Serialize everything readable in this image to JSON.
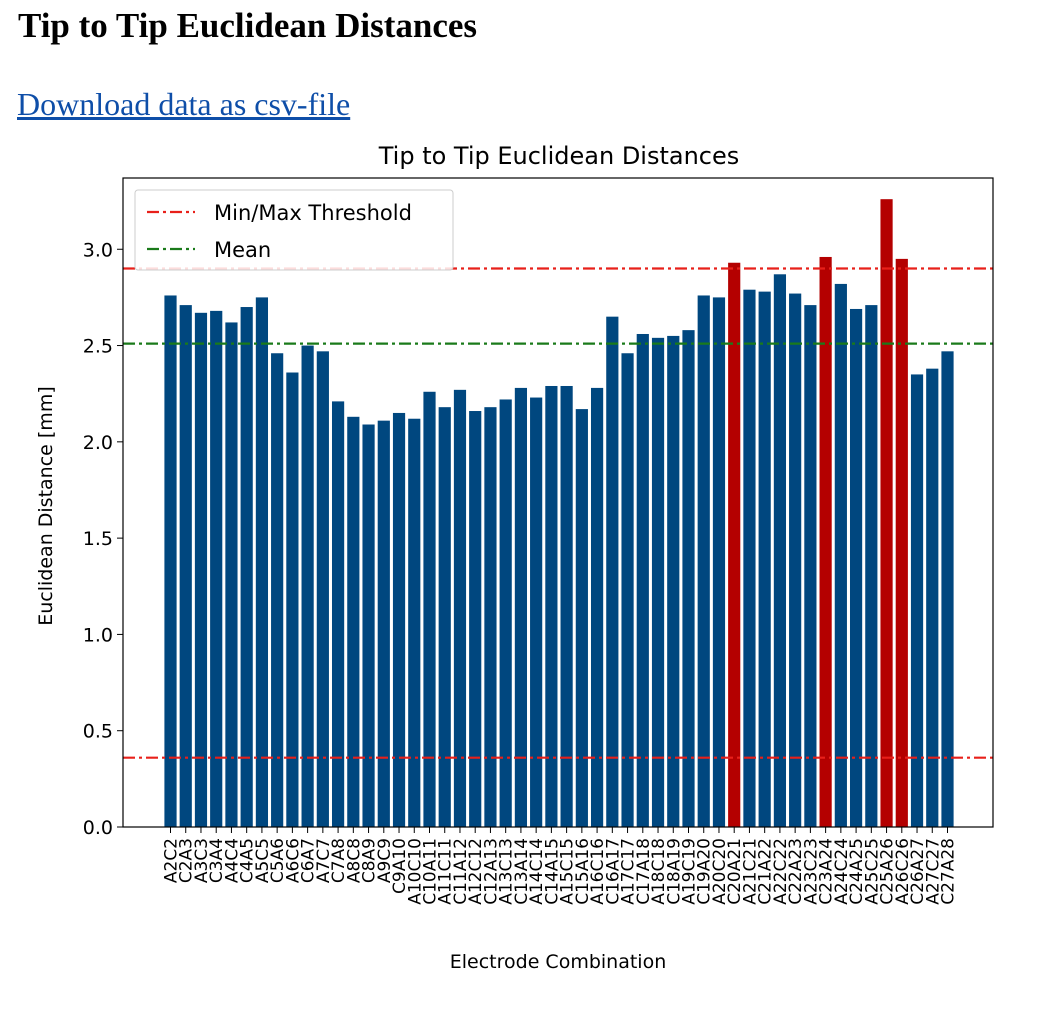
{
  "page": {
    "heading": "Tip to Tip Euclidean Distances",
    "download_link": "Download data as csv-file"
  },
  "chart_data": {
    "type": "bar",
    "title": "Tip to Tip Euclidean Distances",
    "xlabel": "Electrode Combination",
    "ylabel": "Euclidean Distance [mm]",
    "ylim": [
      0,
      3.37
    ],
    "yticks": [
      "0.0",
      "0.5",
      "1.0",
      "1.5",
      "2.0",
      "2.5",
      "3.0"
    ],
    "grid": false,
    "legend_position": "top-left",
    "categories": [
      "A2C2",
      "C2A3",
      "A3C3",
      "C3A4",
      "A4C4",
      "C4A5",
      "A5C5",
      "C5A6",
      "A6C6",
      "C6A7",
      "A7C7",
      "C7A8",
      "A8C8",
      "C8A9",
      "A9C9",
      "C9A10",
      "A10C10",
      "C10A11",
      "A11C11",
      "C11A12",
      "A12C12",
      "C12A13",
      "A13C13",
      "C13A14",
      "A14C14",
      "C14A15",
      "A15C15",
      "C15A16",
      "A16C16",
      "C16A17",
      "A17C17",
      "C17A18",
      "A18C18",
      "C18A19",
      "A19C19",
      "C19A20",
      "A20C20",
      "C20A21",
      "A21C21",
      "C21A22",
      "A22C22",
      "C22A23",
      "A23C23",
      "C23A24",
      "A24C24",
      "C24A25",
      "A25C25",
      "C25A26",
      "A26C26",
      "C26A27",
      "A27C27",
      "C27A28"
    ],
    "values": [
      2.76,
      2.71,
      2.67,
      2.68,
      2.62,
      2.7,
      2.75,
      2.46,
      2.36,
      2.5,
      2.47,
      2.21,
      2.13,
      2.09,
      2.11,
      2.15,
      2.12,
      2.26,
      2.18,
      2.27,
      2.16,
      2.18,
      2.22,
      2.28,
      2.23,
      2.29,
      2.29,
      2.17,
      2.28,
      2.65,
      2.46,
      2.56,
      2.54,
      2.55,
      2.58,
      2.76,
      2.75,
      2.93,
      2.79,
      2.78,
      2.87,
      2.77,
      2.71,
      2.96,
      2.82,
      2.69,
      2.71,
      3.26,
      2.95,
      2.35,
      2.38,
      2.47
    ],
    "thresholds": {
      "min": 0.36,
      "max": 2.9
    },
    "mean": 2.51,
    "legend": [
      "Min/Max Threshold",
      "Mean"
    ],
    "colors": {
      "normal": "#00477f",
      "outlier": "#b40000",
      "threshold": "#e8201a",
      "mean": "#1a7a1a"
    }
  }
}
